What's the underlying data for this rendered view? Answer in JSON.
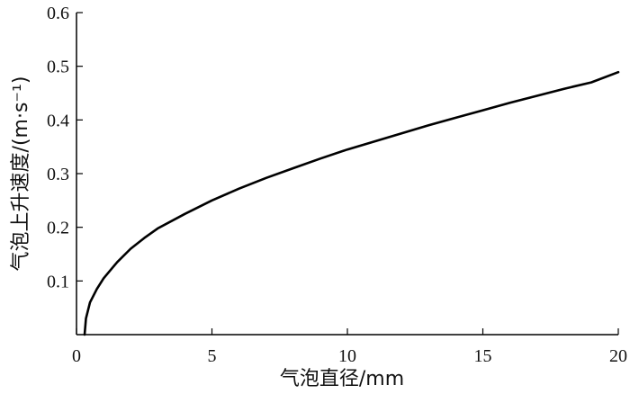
{
  "chart_data": {
    "type": "line",
    "xlabel": "气泡直径/mm",
    "ylabel": "气泡上升速度/(m·s⁻¹)",
    "xlim": [
      0,
      20
    ],
    "ylim": [
      0,
      0.6
    ],
    "xticks": [
      0,
      5,
      10,
      15,
      20
    ],
    "yticks": [
      0.1,
      0.2,
      0.3,
      0.4,
      0.5,
      0.6
    ],
    "xtick_labels": [
      "0",
      "5",
      "10",
      "15",
      "20"
    ],
    "ytick_labels": [
      "0.1",
      "0.2",
      "0.3",
      "0.4",
      "0.5",
      "0.6"
    ],
    "grid": false,
    "series": [
      {
        "color": "#000000",
        "x": [
          0.3,
          0.35,
          0.5,
          0.75,
          1,
          1.5,
          2,
          2.5,
          3,
          4,
          5,
          6,
          7,
          8,
          9,
          10,
          11,
          12,
          13,
          14,
          15,
          16,
          17,
          18,
          19,
          20
        ],
        "y": [
          0.0,
          0.03,
          0.06,
          0.085,
          0.105,
          0.135,
          0.16,
          0.18,
          0.198,
          0.225,
          0.25,
          0.272,
          0.292,
          0.31,
          0.328,
          0.345,
          0.36,
          0.375,
          0.39,
          0.404,
          0.418,
          0.432,
          0.445,
          0.458,
          0.47,
          0.489
        ]
      }
    ]
  }
}
